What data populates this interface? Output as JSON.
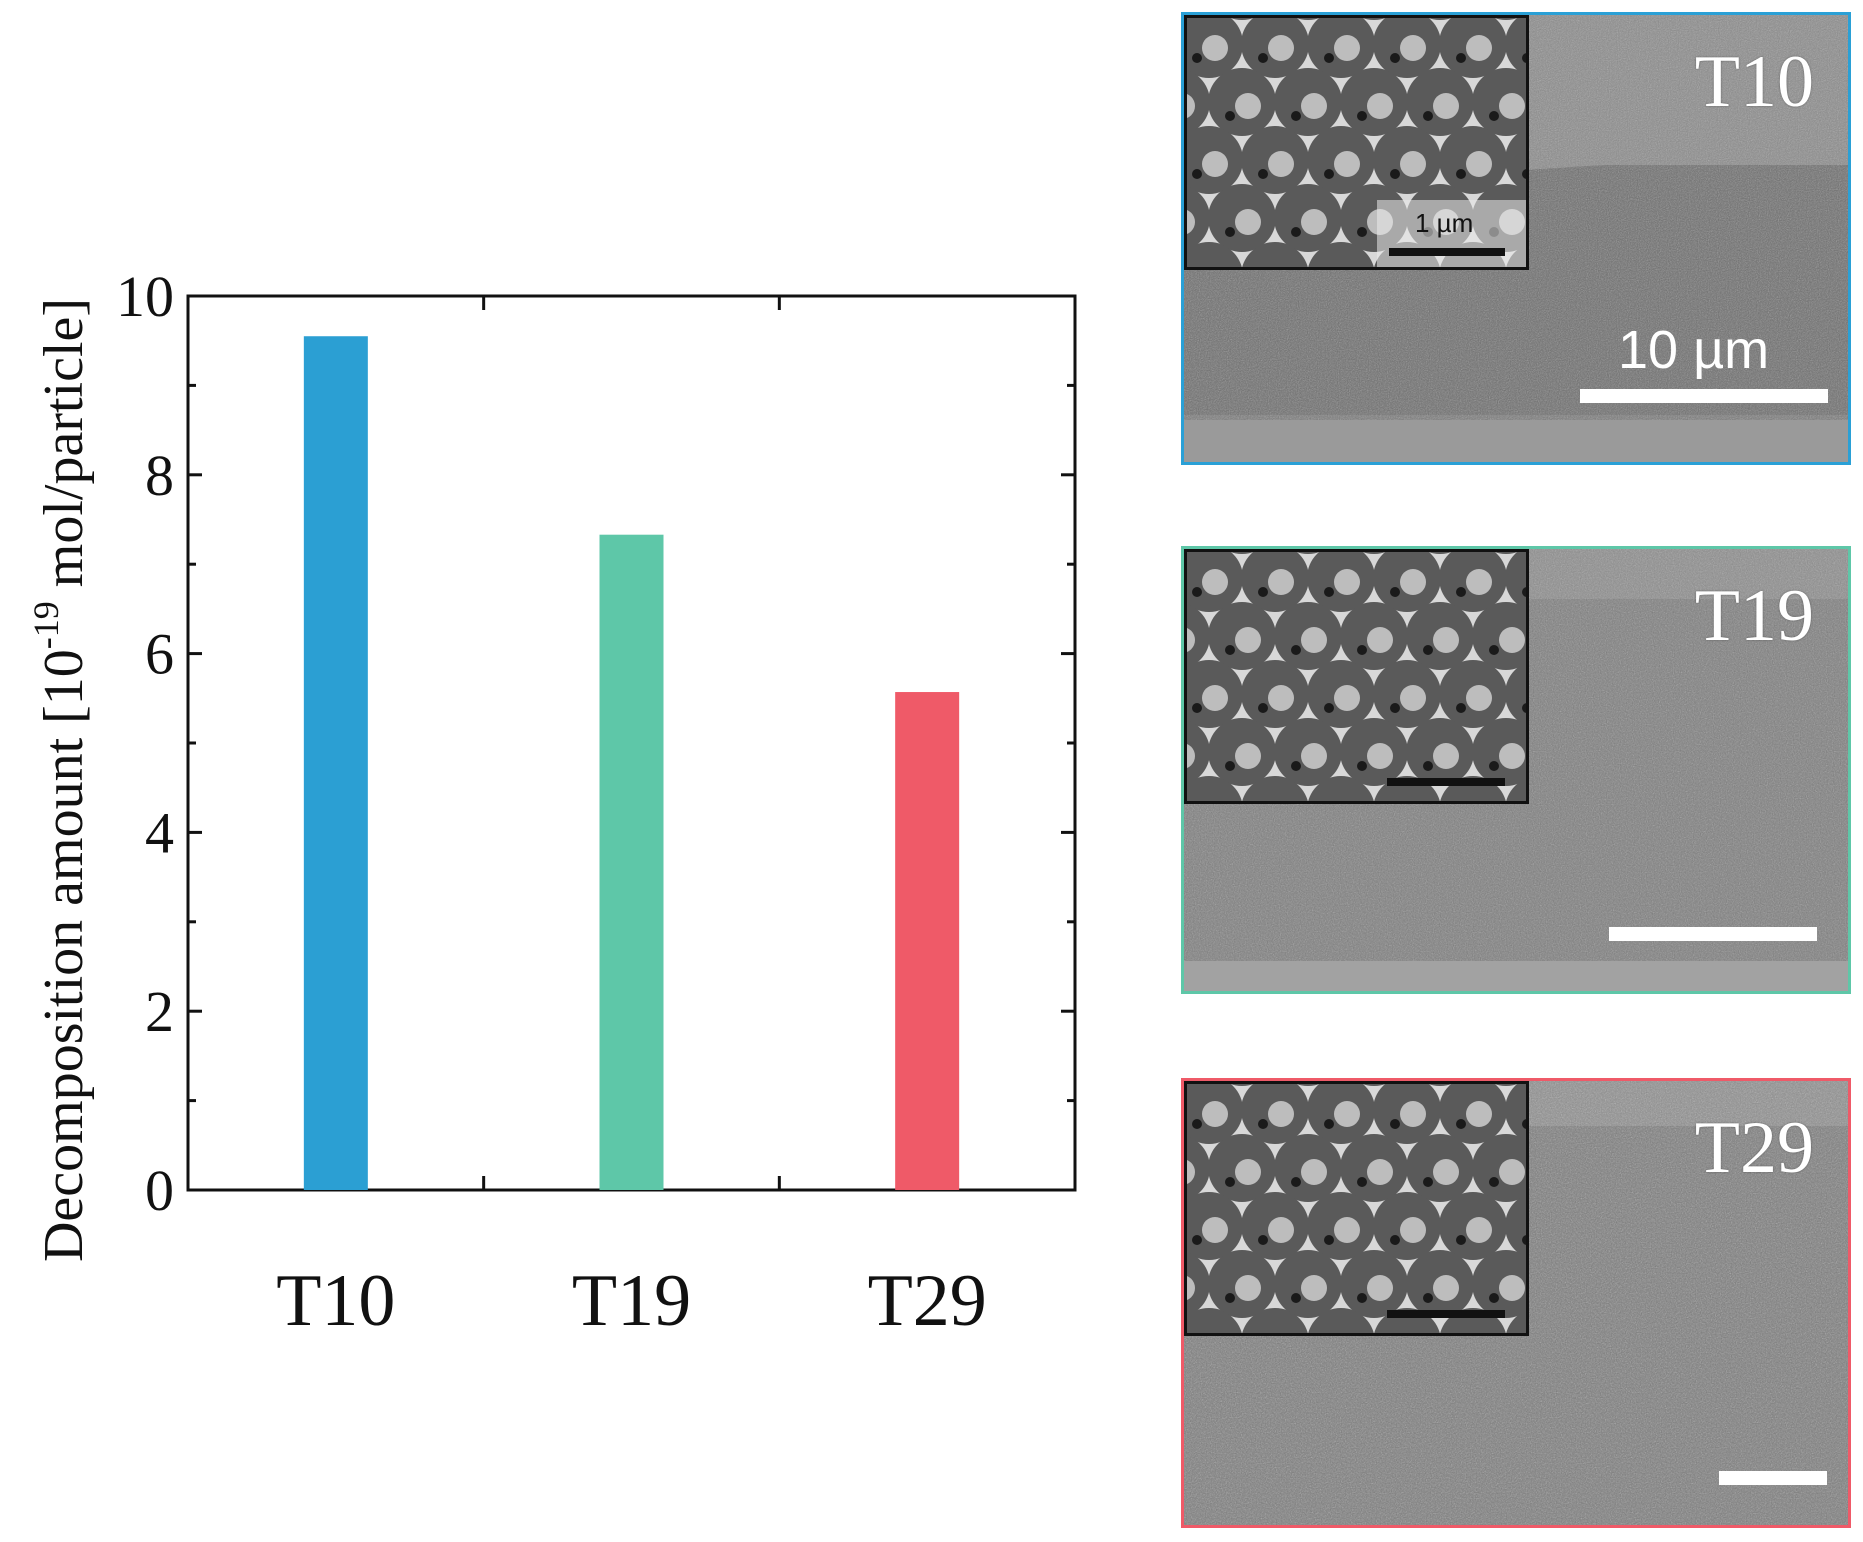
{
  "chart_data": {
    "type": "bar",
    "categories": [
      "T10",
      "T19",
      "T29"
    ],
    "values": [
      9.55,
      7.33,
      5.57
    ],
    "colors": [
      "#2b9fd3",
      "#5ec7a8",
      "#ef5a68"
    ],
    "title": "",
    "xlabel": "",
    "ylabel_main": "Decomposition amount [10",
    "ylabel_sup": "-19",
    "ylabel_tail": " mol/particle]",
    "ylim": [
      0,
      10
    ],
    "yticks": [
      "0",
      "2",
      "4",
      "6",
      "8",
      "10"
    ],
    "grid": false,
    "legend": "none"
  },
  "sem_panels": [
    {
      "label": "T10",
      "border_color": "#2aa0d6",
      "scale_bar_label": "10 µm",
      "inset_scale_label": "1 µm"
    },
    {
      "label": "T19",
      "border_color": "#5ec7a8"
    },
    {
      "label": "T29",
      "border_color": "#ef5a68"
    }
  ]
}
